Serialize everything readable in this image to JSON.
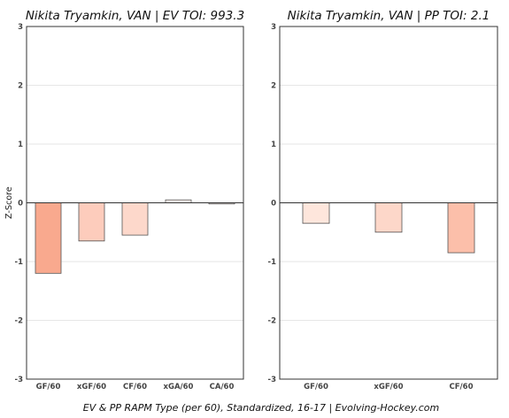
{
  "chart_data": [
    {
      "type": "bar",
      "title": "Nikita Tryamkin, VAN  |  EV TOI: 993.3",
      "ylabel": "Z-Score",
      "ylim": [
        -3,
        3
      ],
      "yticks": [
        3,
        2,
        1,
        0,
        -1,
        -2,
        -3
      ],
      "grid": true,
      "categories": [
        "GF/60",
        "xGF/60",
        "CF/60",
        "xGA/60",
        "CA/60"
      ],
      "values": [
        -1.2,
        -0.65,
        -0.55,
        0.05,
        -0.02
      ],
      "colors": [
        "#f9a98e",
        "#fdccbc",
        "#fdd8cb",
        "#fff5f0",
        "#fff5f0"
      ]
    },
    {
      "type": "bar",
      "title": "Nikita Tryamkin, VAN  |  PP TOI: 2.1",
      "ylabel": "",
      "ylim": [
        -3,
        3
      ],
      "yticks": [
        3,
        2,
        1,
        0,
        -1,
        -2,
        -3
      ],
      "grid": true,
      "categories": [
        "GF/60",
        "xGF/60",
        "CF/60"
      ],
      "values": [
        -0.35,
        -0.5,
        -0.85
      ],
      "colors": [
        "#fee6dc",
        "#fdd7c9",
        "#fcbfaa"
      ]
    }
  ],
  "caption": "EV & PP RAPM Type (per 60), Standardized, 16-17     |     Evolving-Hockey.com"
}
